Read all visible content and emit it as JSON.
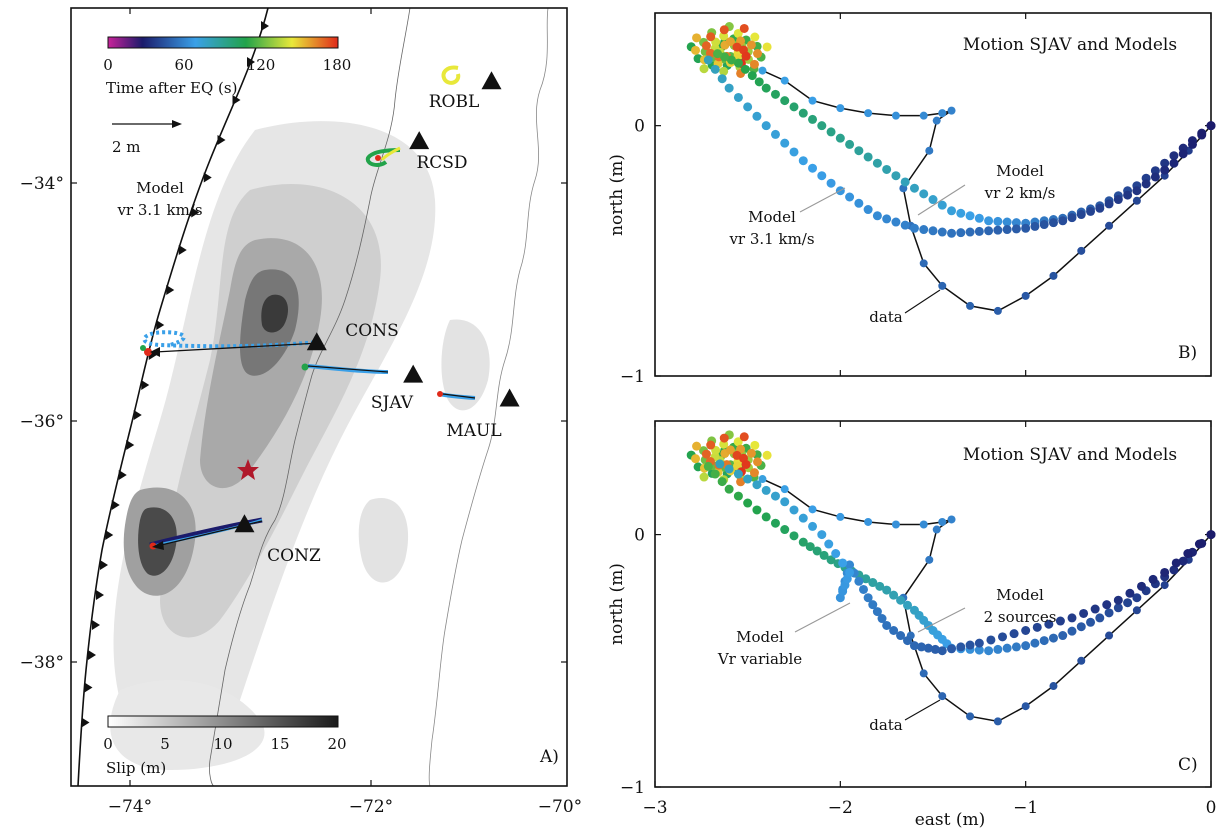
{
  "colors": {
    "data_line": "#111111",
    "slip_scale": [
      "#ffffff",
      "#1a1a1a"
    ],
    "time_scale": [
      "#c8229a",
      "#1b1b6b",
      "#3aa0e8",
      "#22a34a",
      "#e8e83a",
      "#e02a1a"
    ],
    "epicenter": "#b0182a"
  },
  "panel_a": {
    "label": "A)",
    "model_label": [
      "Model",
      "vr 3.1 km/s"
    ],
    "arrow_scale_label": "2 m",
    "time_colorbar": {
      "title": "Time after EQ (s)",
      "ticks": [
        "0",
        "60",
        "120",
        "180"
      ],
      "range": [
        0,
        180
      ]
    },
    "slip_colorbar": {
      "title": "Slip (m)",
      "ticks": [
        "0",
        "5",
        "10",
        "15",
        "20"
      ],
      "range": [
        0,
        20
      ]
    },
    "lon_ticks": [
      "−74°",
      "−72°",
      "−70°"
    ],
    "lat_ticks": [
      "−34°",
      "−36°",
      "−38°"
    ],
    "stations": [
      {
        "name": "ROBL",
        "lon": -71.0,
        "lat": -33.15
      },
      {
        "name": "RCSD",
        "lon": -71.6,
        "lat": -33.65
      },
      {
        "name": "CONS",
        "lon": -72.45,
        "lat": -35.33
      },
      {
        "name": "SJAV",
        "lon": -71.65,
        "lat": -35.6
      },
      {
        "name": "MAUL",
        "lon": -70.85,
        "lat": -35.8
      },
      {
        "name": "CONZ",
        "lon": -73.05,
        "lat": -36.85
      }
    ],
    "epicenter": {
      "lon": -73.2,
      "lat": -36.4
    }
  },
  "panel_b": {
    "label": "B)",
    "title": "Motion SJAV and Models",
    "annotations": [
      "Model",
      "vr 2 km/s",
      "Model",
      "vr 3.1 km/s",
      "data"
    ]
  },
  "panel_c": {
    "label": "C)",
    "title": "Motion SJAV and Models",
    "annotations": [
      "Model",
      "2 sources",
      "Model",
      "Vr variable",
      "data"
    ]
  },
  "axes_bc": {
    "ylabel": "north (m)",
    "xlabel": "east (m)",
    "x_ticks": [
      "−3",
      "−2",
      "−1",
      "0"
    ],
    "y_ticks": [
      "0",
      "−1"
    ],
    "xlim": [
      -3,
      0
    ],
    "ylim": [
      -1,
      0.45
    ]
  },
  "chart_data": [
    {
      "type": "scatter",
      "panel": "B",
      "title": "Motion SJAV and Models",
      "xlabel": "east (m)",
      "ylabel": "north (m)",
      "xlim": [
        -3,
        0
      ],
      "ylim": [
        -1,
        0.45
      ],
      "series": [
        {
          "name": "data",
          "x": [
            0,
            -0.12,
            -0.25,
            -0.4,
            -0.55,
            -0.7,
            -0.85,
            -1.0,
            -1.15,
            -1.3,
            -1.45,
            -1.55,
            -1.62,
            -1.66,
            -1.52,
            -1.48,
            -1.4,
            -1.45,
            -1.55,
            -1.7,
            -1.85,
            -2.0,
            -2.15,
            -2.3,
            -2.42
          ],
          "y": [
            0,
            -0.1,
            -0.2,
            -0.3,
            -0.4,
            -0.5,
            -0.6,
            -0.68,
            -0.74,
            -0.72,
            -0.64,
            -0.55,
            -0.4,
            -0.25,
            -0.1,
            0.02,
            0.06,
            0.05,
            0.04,
            0.04,
            0.05,
            0.07,
            0.1,
            0.18,
            0.22
          ]
        },
        {
          "name": "vr 2 km/s",
          "x": [
            0,
            -0.2,
            -0.4,
            -0.6,
            -0.8,
            -1.0,
            -1.2,
            -1.4,
            -1.6,
            -1.8,
            -2.0,
            -2.2,
            -2.4,
            -2.55,
            -2.7
          ],
          "y": [
            0,
            -0.12,
            -0.24,
            -0.32,
            -0.37,
            -0.39,
            -0.38,
            -0.34,
            -0.25,
            -0.15,
            -0.05,
            0.05,
            0.15,
            0.25,
            0.3
          ]
        },
        {
          "name": "vr 3.1 km/s",
          "x": [
            0,
            -0.2,
            -0.4,
            -0.6,
            -0.8,
            -1.0,
            -1.2,
            -1.4,
            -1.6,
            -1.8,
            -2.0,
            -2.2,
            -2.4,
            -2.6,
            -2.75
          ],
          "y": [
            0,
            -0.15,
            -0.26,
            -0.33,
            -0.38,
            -0.41,
            -0.42,
            -0.43,
            -0.41,
            -0.36,
            -0.26,
            -0.14,
            0.0,
            0.15,
            0.3
          ]
        }
      ]
    },
    {
      "type": "scatter",
      "panel": "C",
      "title": "Motion SJAV and Models",
      "xlabel": "east (m)",
      "ylabel": "north (m)",
      "xlim": [
        -3,
        0
      ],
      "ylim": [
        -1,
        0.45
      ],
      "series": [
        {
          "name": "data",
          "x": [
            0,
            -0.12,
            -0.25,
            -0.4,
            -0.55,
            -0.7,
            -0.85,
            -1.0,
            -1.15,
            -1.3,
            -1.45,
            -1.55,
            -1.62,
            -1.66,
            -1.52,
            -1.48,
            -1.4,
            -1.45,
            -1.55,
            -1.7,
            -1.85,
            -2.0,
            -2.15,
            -2.3,
            -2.42
          ],
          "y": [
            0,
            -0.1,
            -0.2,
            -0.3,
            -0.4,
            -0.5,
            -0.6,
            -0.68,
            -0.74,
            -0.72,
            -0.64,
            -0.55,
            -0.4,
            -0.25,
            -0.1,
            0.02,
            0.06,
            0.05,
            0.04,
            0.04,
            0.05,
            0.07,
            0.1,
            0.18,
            0.22
          ]
        },
        {
          "name": "2 sources",
          "x": [
            0,
            -0.2,
            -0.4,
            -0.6,
            -0.8,
            -1.0,
            -1.2,
            -1.4,
            -1.5,
            -1.6,
            -1.75,
            -1.9,
            -2.05,
            -2.2,
            -2.4,
            -2.6,
            -2.75
          ],
          "y": [
            0,
            -0.14,
            -0.25,
            -0.33,
            -0.4,
            -0.44,
            -0.46,
            -0.45,
            -0.38,
            -0.3,
            -0.22,
            -0.16,
            -0.1,
            -0.03,
            0.07,
            0.18,
            0.3
          ]
        },
        {
          "name": "Vr variable",
          "x": [
            0,
            -0.25,
            -0.5,
            -0.75,
            -1.0,
            -1.25,
            -1.45,
            -1.6,
            -1.75,
            -1.85,
            -1.95,
            -2.0,
            -1.95,
            -2.1,
            -2.3,
            -2.5,
            -2.7
          ],
          "y": [
            0,
            -0.15,
            -0.26,
            -0.33,
            -0.38,
            -0.43,
            -0.46,
            -0.44,
            -0.36,
            -0.25,
            -0.12,
            -0.25,
            -0.15,
            0.0,
            0.13,
            0.22,
            0.3
          ]
        }
      ]
    }
  ]
}
